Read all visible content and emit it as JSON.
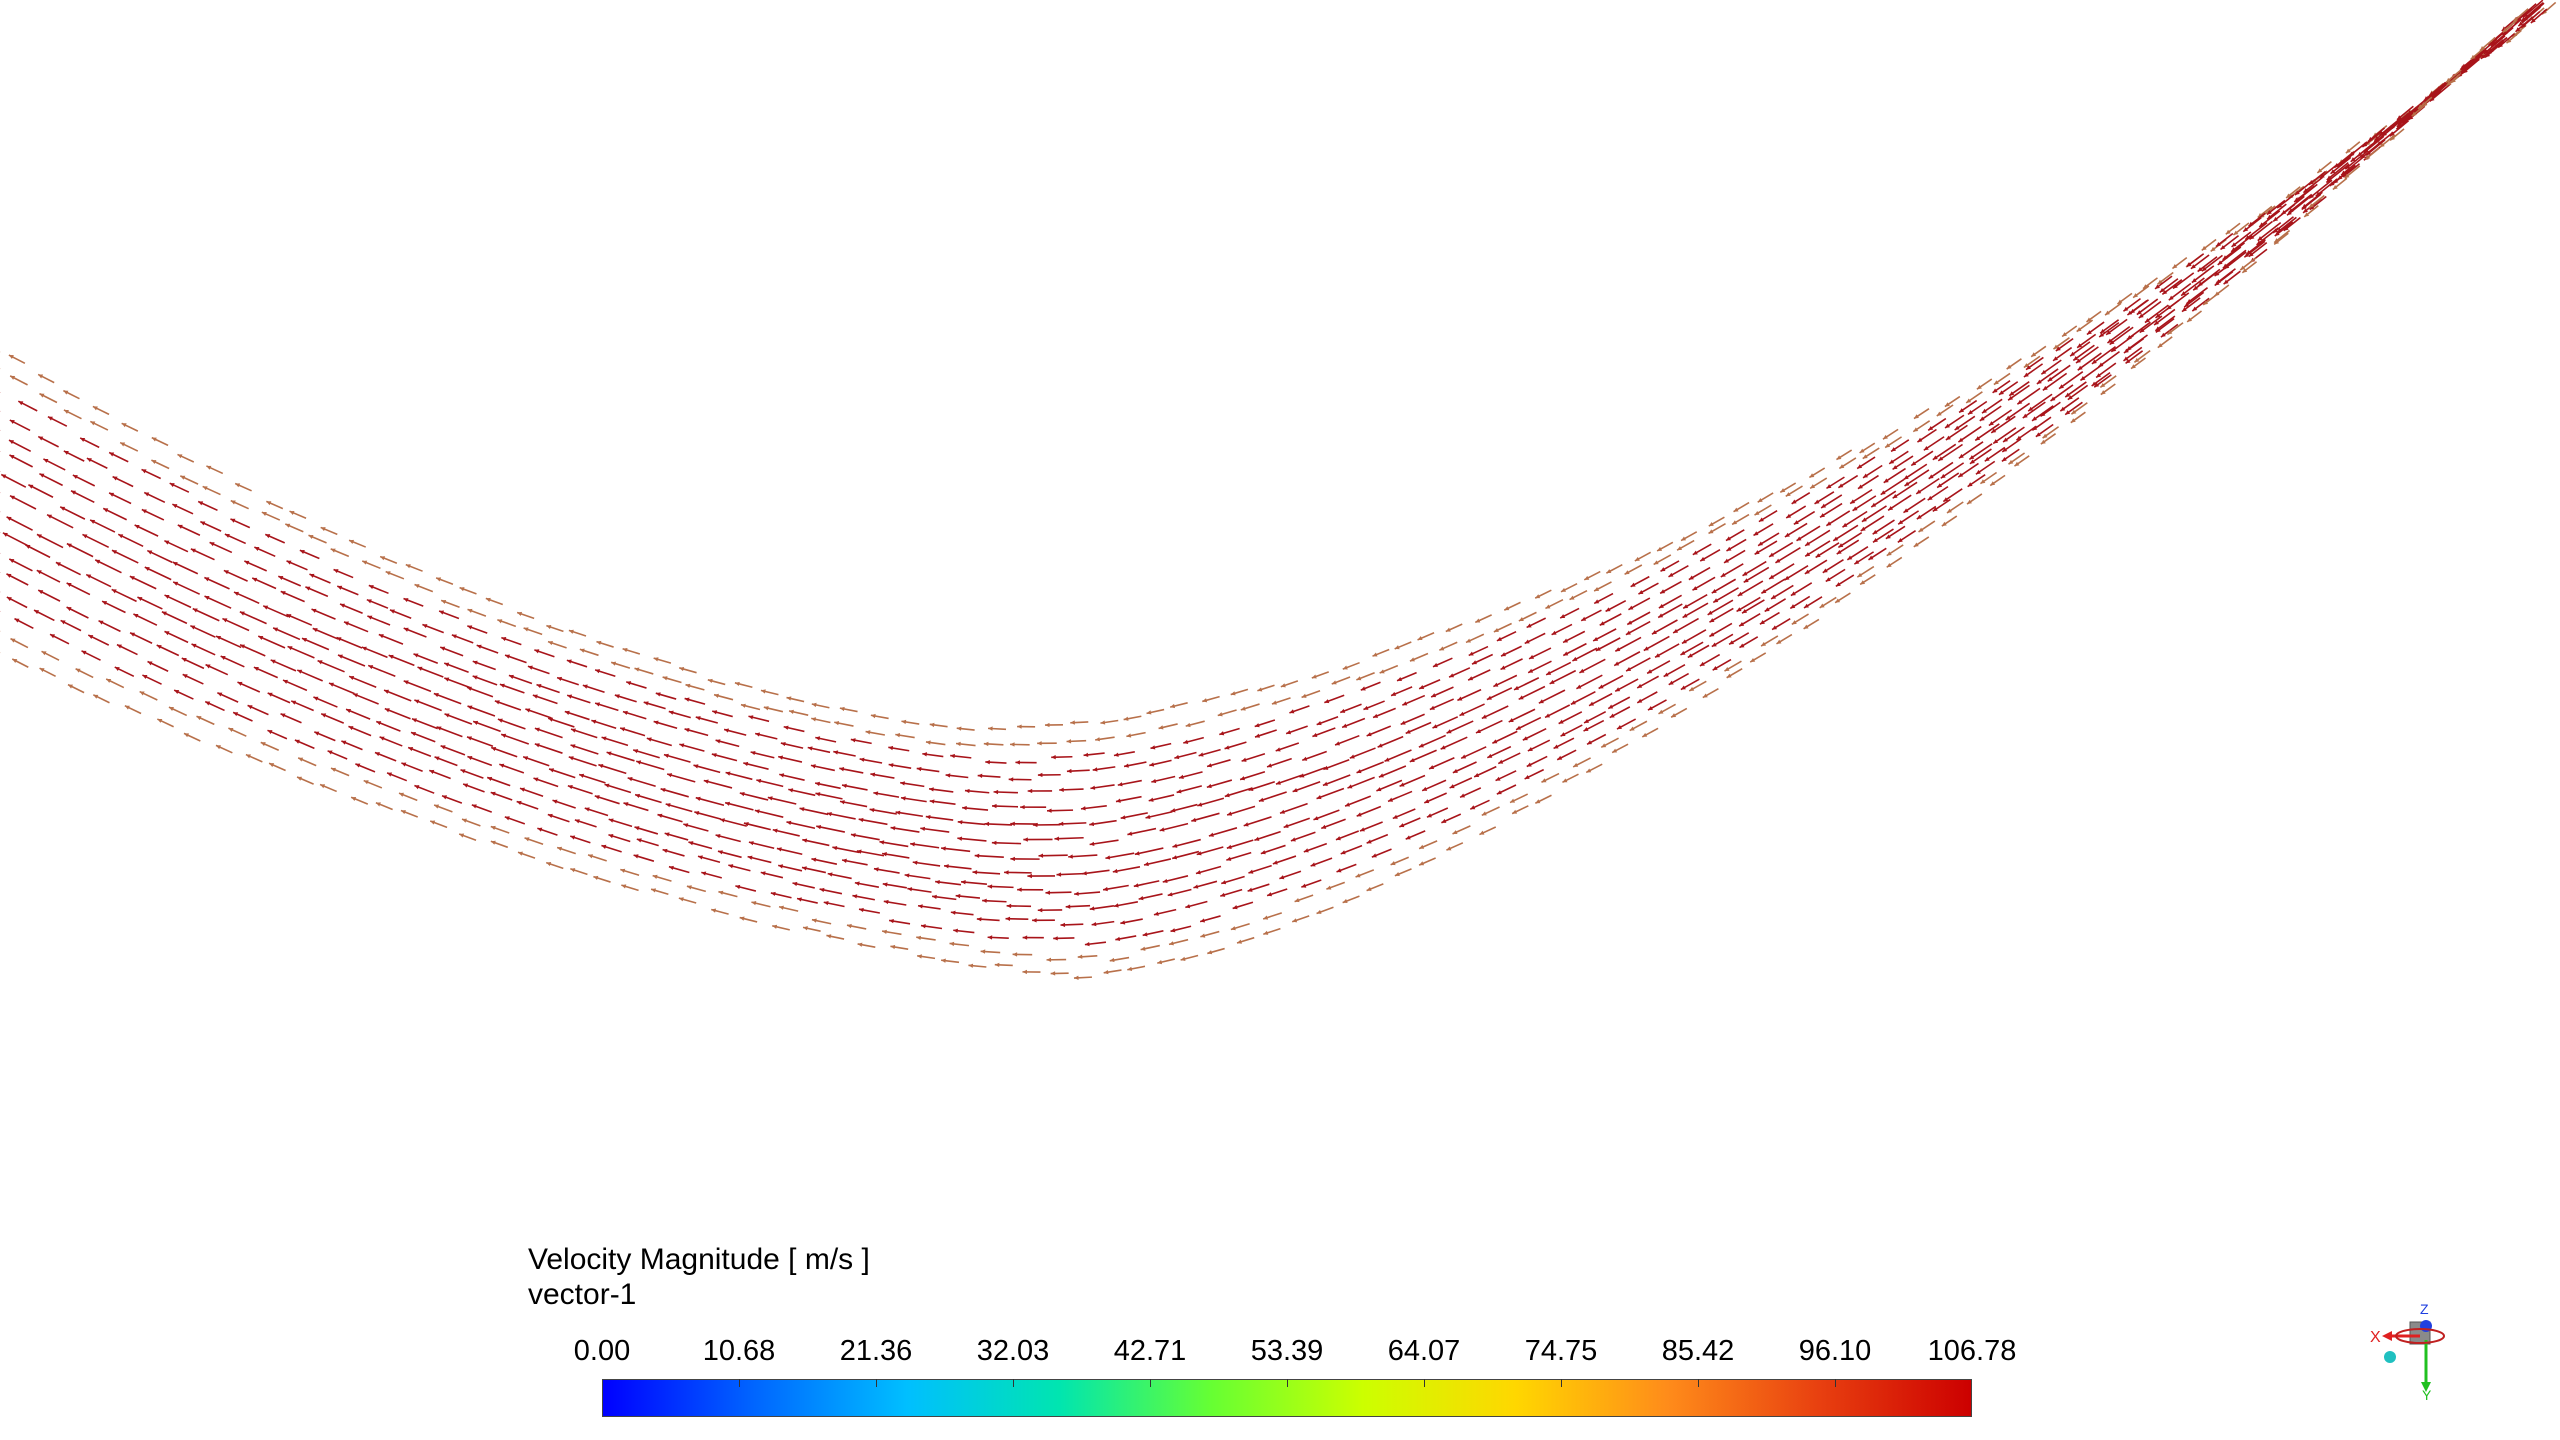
{
  "legend": {
    "title": "Velocity Magnitude [ m/s ]",
    "subtitle": "vector-1",
    "ticks": [
      "0.00",
      "10.68",
      "21.36",
      "32.03",
      "42.71",
      "53.39",
      "64.07",
      "74.75",
      "85.42",
      "96.10",
      "106.78"
    ],
    "colormap": [
      "#0000ff",
      "#0066ff",
      "#00bfff",
      "#00e5b0",
      "#66ff33",
      "#ccff00",
      "#ffd700",
      "#ff8c1a",
      "#e84010",
      "#cc0000"
    ]
  },
  "vectors": {
    "core_color": "#a8141a",
    "edge_color": "#b8704a",
    "direction": "counter-flow (leftward along arc)"
  },
  "triad": {
    "x_label": "X",
    "y_label": "Y",
    "z_label": "Z",
    "x_color": "#e02020",
    "y_color": "#20c020",
    "z_color": "#2040e0"
  }
}
